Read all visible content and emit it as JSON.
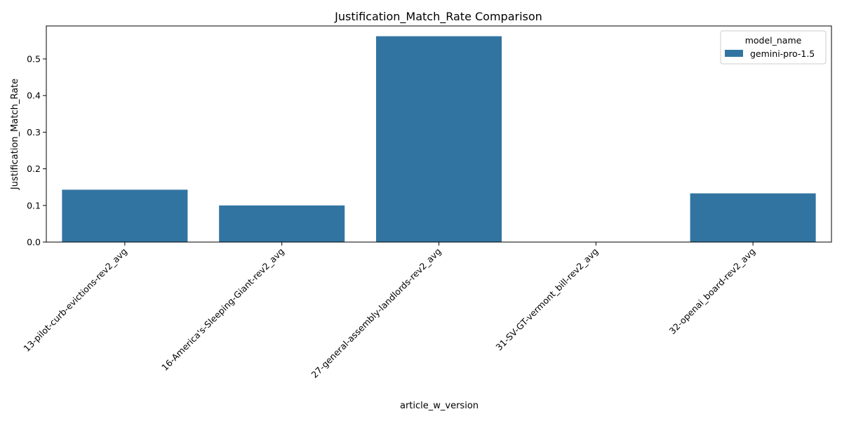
{
  "chart_data": {
    "type": "bar",
    "title": "Justification_Match_Rate Comparison",
    "xlabel": "article_w_version",
    "ylabel": "Justification_Match_Rate",
    "categories": [
      "13-pilot-curb-evictions-rev2_avg",
      "16-America's-Sleeping-Giant-rev2_avg",
      "27-general-assembly-landlords-rev2_avg",
      "31-SV-GT-vermont_bill-rev2_avg",
      "32-openai_board-rev2_avg"
    ],
    "series": [
      {
        "name": "gemini-pro-1.5",
        "values": [
          0.143,
          0.1,
          0.562,
          0.0,
          0.133
        ],
        "color": "#3274a1"
      }
    ],
    "ylim": [
      0,
      0.59
    ],
    "yticks": [
      "0.0",
      "0.1",
      "0.2",
      "0.3",
      "0.4",
      "0.5"
    ],
    "grid": false,
    "legend": {
      "title": "model_name",
      "placement": "top-right"
    }
  }
}
